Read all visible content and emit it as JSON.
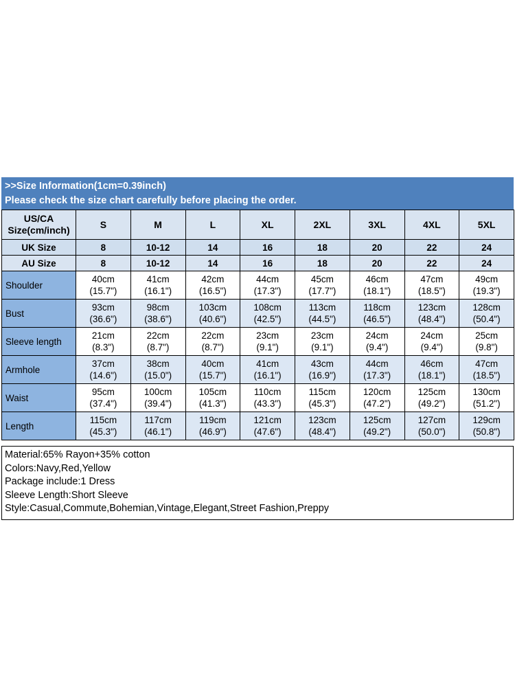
{
  "banner": {
    "line1": ">>Size Information(1cm=0.39inch)",
    "line2": "Please check the size chart carefully before placing the order."
  },
  "colors": {
    "banner_bg": "#4f81bd",
    "header_row_bg": "#d9e4f1",
    "label_col_bg": "#8eb4e0",
    "stripe_bg": "#dce7f4"
  },
  "table": {
    "corner": "US/CA\nSize(cm/inch)",
    "sizes": [
      "S",
      "M",
      "L",
      "XL",
      "2XL",
      "3XL",
      "4XL",
      "5XL"
    ],
    "uk": {
      "label": "UK Size",
      "values": [
        "8",
        "10-12",
        "14",
        "16",
        "18",
        "20",
        "22",
        "24"
      ]
    },
    "au": {
      "label": "AU Size",
      "values": [
        "8",
        "10-12",
        "14",
        "16",
        "18",
        "20",
        "22",
        "24"
      ]
    },
    "rows": [
      {
        "label": "Shoulder",
        "values": [
          "40cm\n(15.7\")",
          "41cm\n(16.1\")",
          "42cm\n(16.5\")",
          "44cm\n(17.3\")",
          "45cm\n(17.7\")",
          "46cm\n(18.1\")",
          "47cm\n(18.5\")",
          "49cm\n(19.3\")"
        ]
      },
      {
        "label": "Bust",
        "values": [
          "93cm\n(36.6\")",
          "98cm\n(38.6\")",
          "103cm\n(40.6\")",
          "108cm\n(42.5\")",
          "113cm\n(44.5\")",
          "118cm\n(46.5\")",
          "123cm\n(48.4\")",
          "128cm\n(50.4\")"
        ]
      },
      {
        "label": "Sleeve length",
        "values": [
          "21cm\n(8.3\")",
          "22cm\n(8.7\")",
          "22cm\n(8.7\")",
          "23cm\n(9.1\")",
          "23cm\n(9.1\")",
          "24cm\n(9.4\")",
          "24cm\n(9.4\")",
          "25cm\n(9.8\")"
        ]
      },
      {
        "label": "Armhole",
        "values": [
          "37cm\n(14.6\")",
          "38cm\n(15.0\")",
          "40cm\n(15.7\")",
          "41cm\n(16.1\")",
          "43cm\n(16.9\")",
          "44cm\n(17.3\")",
          "46cm\n(18.1\")",
          "47cm\n(18.5\")"
        ]
      },
      {
        "label": "Waist",
        "values": [
          "95cm\n(37.4\")",
          "100cm\n(39.4\")",
          "105cm\n(41.3\")",
          "110cm\n(43.3\")",
          "115cm\n(45.3\")",
          "120cm\n(47.2\")",
          "125cm\n(49.2\")",
          "130cm\n(51.2\")"
        ]
      },
      {
        "label": "Length",
        "values": [
          "115cm\n(45.3\")",
          "117cm\n(46.1\")",
          "119cm\n(46.9\")",
          "121cm\n(47.6\")",
          "123cm\n(48.4\")",
          "125cm\n(49.2\")",
          "127cm\n(50.0\")",
          "129cm\n(50.8\")"
        ]
      }
    ]
  },
  "info": {
    "lines": [
      "Material:65% Rayon+35% cotton",
      "Colors:Navy,Red,Yellow",
      "Package include:1 Dress",
      "Sleeve Length:Short Sleeve",
      "Style:Casual,Commute,Bohemian,Vintage,Elegant,Street Fashion,Preppy"
    ]
  }
}
